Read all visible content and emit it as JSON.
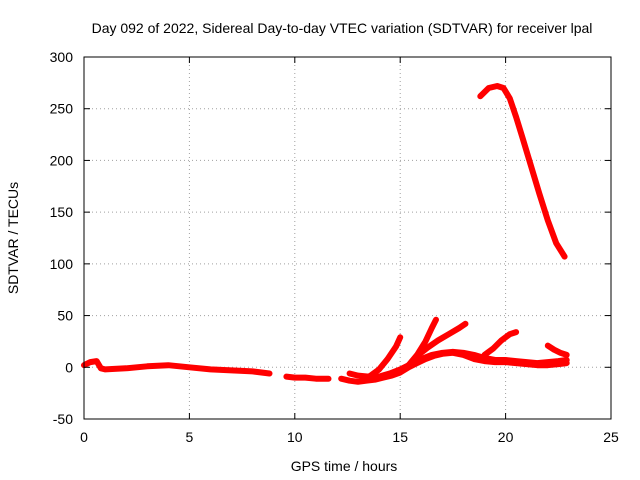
{
  "chart_data": {
    "type": "line",
    "title": "Day 092 of 2022, Sidereal Day-to-day VTEC variation (SDTVAR) for receiver lpal",
    "xlabel": "GPS time / hours",
    "ylabel": "SDTVAR / TECUs",
    "xlim": [
      0,
      25
    ],
    "ylim": [
      -50,
      300
    ],
    "xticks": [
      0,
      5,
      10,
      15,
      20,
      25
    ],
    "yticks": [
      -50,
      0,
      50,
      100,
      150,
      200,
      250,
      300
    ],
    "grid": true,
    "legend": "none",
    "series_color": "#ff0000",
    "series": [
      {
        "x": [
          0.0,
          0.3,
          0.6,
          0.8,
          1.0,
          2.0,
          3.0,
          4.0,
          5.0,
          6.0,
          7.0,
          8.0,
          8.8
        ],
        "y": [
          2,
          5,
          6,
          -1,
          -2,
          -1,
          1,
          2,
          0,
          -2,
          -3,
          -4,
          -6
        ]
      },
      {
        "x": [
          9.6,
          10.0,
          10.5,
          11.0,
          11.6
        ],
        "y": [
          -9,
          -10,
          -10,
          -11,
          -11
        ]
      },
      {
        "x": [
          12.2,
          12.6,
          13.0,
          13.4,
          13.8,
          14.2,
          14.6,
          15.0,
          15.4,
          15.8,
          16.2,
          16.6,
          17.0,
          17.5,
          18.0,
          18.5,
          19.0,
          19.5,
          20.0,
          20.5,
          21.0,
          21.5,
          22.0,
          22.5,
          22.9
        ],
        "y": [
          -11,
          -13,
          -14,
          -13,
          -12,
          -10,
          -8,
          -5,
          0,
          4,
          8,
          11,
          13,
          14,
          12,
          8,
          6,
          5,
          5,
          4,
          3,
          2,
          2,
          3,
          4
        ]
      },
      {
        "x": [
          12.6,
          13.0,
          13.5,
          14.0,
          14.5,
          15.0,
          15.5,
          16.0,
          16.5,
          17.0,
          17.5,
          18.0,
          18.5,
          19.0,
          19.5,
          20.0,
          20.5,
          21.0,
          21.5,
          22.0,
          22.5,
          22.9
        ],
        "y": [
          -6,
          -8,
          -9,
          -9,
          -6,
          -2,
          3,
          8,
          12,
          14,
          15,
          14,
          12,
          9,
          7,
          7,
          6,
          5,
          4,
          5,
          6,
          7
        ]
      },
      {
        "x": [
          13.2,
          13.6,
          14.0,
          14.4,
          14.8,
          15.0
        ],
        "y": [
          -12,
          -8,
          -2,
          8,
          20,
          29
        ]
      },
      {
        "x": [
          15.4,
          15.8,
          16.2,
          16.5,
          16.7
        ],
        "y": [
          2,
          12,
          25,
          38,
          46
        ]
      },
      {
        "x": [
          15.8,
          16.3,
          16.8,
          17.3,
          17.8,
          18.1
        ],
        "y": [
          11,
          19,
          26,
          32,
          38,
          42
        ]
      },
      {
        "x": [
          19.0,
          19.4,
          19.8,
          20.2,
          20.5
        ],
        "y": [
          12,
          18,
          26,
          32,
          34
        ]
      },
      {
        "x": [
          22.0,
          22.3,
          22.6,
          22.9
        ],
        "y": [
          21,
          17,
          14,
          12
        ]
      },
      {
        "x": [
          18.8,
          19.2,
          19.6,
          19.9,
          20.2,
          20.5,
          20.8,
          21.2,
          21.6,
          22.0,
          22.4,
          22.8
        ],
        "y": [
          262,
          270,
          272,
          270,
          260,
          242,
          222,
          195,
          168,
          142,
          120,
          107
        ]
      }
    ]
  }
}
